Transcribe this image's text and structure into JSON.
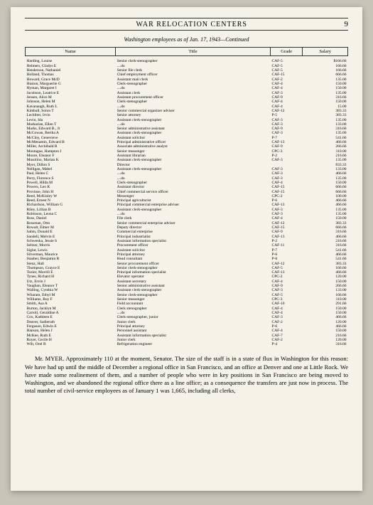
{
  "header": {
    "title": "WAR RELOCATION CENTERS",
    "page": "9"
  },
  "subtitle": "Washington employees as of Jan. 17, 1943—Continued",
  "columns": [
    "Name",
    "Title",
    "Grade",
    "Salary"
  ],
  "rows": [
    [
      "Harding, Louise",
      "Senior clerk-stenographer",
      "CAF-5",
      "$166.66"
    ],
    [
      "Helmers, Gladys E",
      "....do",
      "CAF-5",
      "166.66"
    ],
    [
      "Henderson, Nathaniel",
      "Senior file clerk",
      "CAF-5",
      "166.66"
    ],
    [
      "Holland, Thomas",
      "Chief employment officer",
      "CAF-15",
      "666.66"
    ],
    [
      "Howard, Grace McD",
      "Assistant mail clerk",
      "CAF-2",
      "135.00"
    ],
    [
      "Huston, Marguerite G",
      "Clerk-stenographer",
      "CAF-4",
      "150.00"
    ],
    [
      "Hyman, Margaret I",
      "....do",
      "CAF-4",
      "150.00"
    ],
    [
      "Jacobson, Leatrice E",
      "Assistant clerk",
      "CAF-3",
      "135.00"
    ],
    [
      "Jensen, Alice M",
      "Assistant procurement officer",
      "CAF-9",
      "316.66"
    ],
    [
      "Johnson, Helen M",
      "Clerk-stenographer",
      "CAF-4",
      "150.00"
    ],
    [
      "Kavanaugh, Ruth L",
      "....do",
      "CAF-4",
      "15.00"
    ],
    [
      "Kimball, Solon T",
      "Senior commercial organizer adviser",
      "CAF-12",
      "383.33"
    ],
    [
      "Lechliter, Irvin",
      "Senior attorney",
      "P-5",
      "383.33"
    ],
    [
      "Levin, Ida",
      "Assistant clerk-stenographer",
      "CAF-3",
      "135.00"
    ],
    [
      "Markarian, Ellen T",
      "....do",
      "CAF-3",
      "133.00"
    ],
    [
      "Marks, Edward B., Jr",
      "Senior administrative assistant",
      "CAF-9",
      "316.66"
    ],
    [
      "McCowan, Bertha A",
      "Assistant clerk-stenographer",
      "CAF-3",
      "135.00"
    ],
    [
      "McCloy, Genevieve",
      "Assistant solicitor",
      "P-7",
      "541.66"
    ],
    [
      "McMenamin, Edward B",
      "Principal administrative officer",
      "CAF-13",
      "466.66"
    ],
    [
      "Miller, Archibald R",
      "Associate administrative analyst",
      "CAF-9",
      "266.66"
    ],
    [
      "Montague, Hampton J",
      "Senior messenger",
      "CPC-3",
      "110.00"
    ],
    [
      "Moore, Eleanor F",
      "Assistant librarian",
      "P-2",
      "216.66"
    ],
    [
      "Musolino, Marian K",
      "Assistant clerk-stenographer",
      "CAF-3",
      "135.00"
    ],
    [
      "Myer, Dillon S",
      "Director",
      "",
      "833.33"
    ],
    [
      "Nelligan, Mabel",
      "Assistant clerk-stenographer",
      "CAF-3",
      "133.00"
    ],
    [
      "Paul, Helen C",
      "....do",
      "CAF-3",
      "466.66"
    ],
    [
      "Perry, Florence S",
      "....do",
      "CAF-3",
      "135.00"
    ],
    [
      "Powell, Hilda M",
      "Clerk-stenographer",
      "CAF-4",
      "150.00"
    ],
    [
      "Powers, Leo K",
      "Assistant director",
      "CAF-15",
      "666.66"
    ],
    [
      "Provinse, John H",
      "Chief commercial service officer",
      "CAF-15",
      "666.66"
    ],
    [
      "Reed, McKinley W",
      "Messenger",
      "CPC-2",
      "100.00"
    ],
    [
      "Reed, Ernest N",
      "Principal agriculturist",
      "P-6",
      "466.66"
    ],
    [
      "Richardson, William G",
      "Principal commercial enterprise adviser",
      "CAF-13",
      "466.66"
    ],
    [
      "Riley, Lillian B",
      "Assistant clerk-stenographer",
      "CAF-3",
      "135.00"
    ],
    [
      "Robinson, Leona C",
      "....do",
      "CAF-3",
      "135.00"
    ],
    [
      "Ross, Daniel",
      "File clerk",
      "CAF-4",
      "150.00"
    ],
    [
      "Rossman, Otto",
      "Senior commercial enterprise adviser",
      "CAF-12",
      "383.33"
    ],
    [
      "Rowalt, Elmer M",
      "Deputy director",
      "CAF-15",
      "666.66"
    ],
    [
      "Sabin, Donald E",
      "Commercial enterprise",
      "CAF-9",
      "316.66"
    ],
    [
      "Sandell, Melvin E",
      "Principal industrialist",
      "CAF-13",
      "466.66"
    ],
    [
      "Schwenka, Jessie S",
      "Assistant information specialist",
      "P-2",
      "216.66"
    ],
    [
      "Seltzer, Morris",
      "Procurement officer",
      "CAF-11",
      "316.66"
    ],
    [
      "Siglar, Lewis",
      "Assistant solicitor",
      "P-7",
      "541.66"
    ],
    [
      "Silverman, Maurice",
      "Principal attorney",
      "P-6",
      "466.66"
    ],
    [
      "Stauber, Benjamin R",
      "Head consultant",
      "P-8",
      "541.66"
    ],
    [
      "Stenz, Hall",
      "Senior procurement officer",
      "CAF-12",
      "383.33"
    ],
    [
      "Thompson, Grayce E",
      "Senior clerk-stenographer",
      "CAF-5",
      "166.66"
    ],
    [
      "Tozier, Morrill E",
      "Principal information specialist",
      "CAF-13",
      "466.66"
    ],
    [
      "Tynes, Richard H",
      "Elevator operator",
      "CPC-2",
      "120.00"
    ],
    [
      "Utz, Ervin J",
      "Assistant secretary",
      "CAF-4",
      "150.00"
    ],
    [
      "Vaughan, Eleanor T",
      "Senior administrative assistant",
      "CAF-9",
      "266.66"
    ],
    [
      "Walling, Cynthia W",
      "Assistant clerk-stenographer",
      "CAF-3",
      "133.00"
    ],
    [
      "Wharam, Ethyl M",
      "Senior clerk-stenographer",
      "CAF-5",
      "166.66"
    ],
    [
      "Williams, Roy F",
      "Senior messenger",
      "CPC-3",
      "110.00"
    ],
    [
      "Smith, Asa A",
      "Field accountant",
      "CAF-10",
      "291.66"
    ],
    [
      "Burton, Jacklyn M",
      "Clerk stenographer",
      "CAF-4",
      "150.00"
    ],
    [
      "Carroll, Geraldine A",
      "....do",
      "CAF-4",
      "150.00"
    ],
    [
      "Cox, Kathleen E",
      "Clerk-stenographer, junior",
      "CAF-3",
      "466.66"
    ],
    [
      "Deaver, Sadieruth",
      "Junior clerk",
      "CAF-2",
      "120.00"
    ],
    [
      "Ferguson, Edwin E",
      "Principal attorney",
      "P-6",
      "466.66"
    ],
    [
      "Hanson, Helen J",
      "Personnel assistant",
      "CAF-4",
      "150.00"
    ],
    [
      "McKee, Ruth E",
      "Assistant information specialist",
      "CAF-7",
      "216.66"
    ],
    [
      "Royer, Cecile H",
      "Junior clerk",
      "CAF-2",
      "120.00"
    ],
    [
      "Wilt, Orel B",
      "Refrigeration engineer",
      "P-4",
      "316.66"
    ]
  ],
  "body": "Mr. MYER. Approximately 110 at the moment, Senator. The size of the staff is in a state of flux in Washington for this reason: We have had up until the middle of December a regional office in San Francisco, and an office at Denver and one at Little Rock. We have made some realinement of them, and a number of people who were in key positions in San Francisco are being moved to Washington, and we abandoned the regional office there as a line office; as a consequence the transfers are just now in process. The total number of civil-service employees as of January 1 was 1,665, including all clerks,"
}
